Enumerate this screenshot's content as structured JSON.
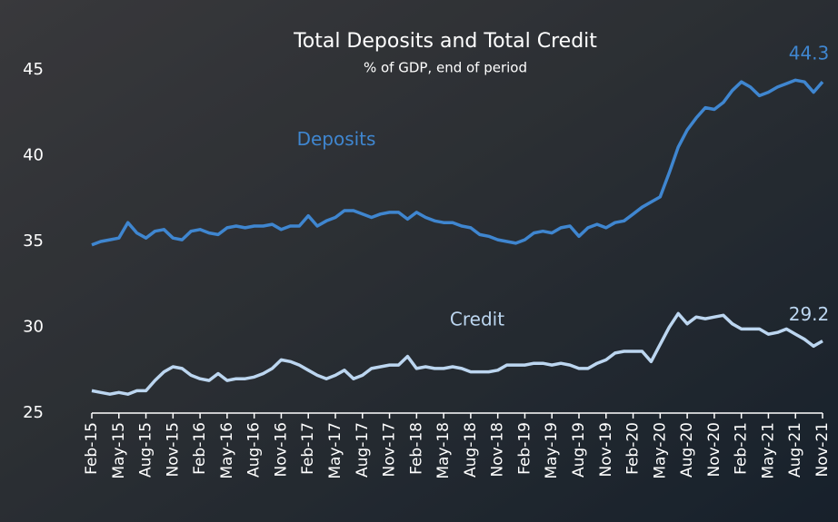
{
  "chart_data": {
    "type": "line",
    "title": "Total Deposits and Total Credit",
    "subtitle": "% of GDP, end of period",
    "categories": [
      "Feb-15",
      null,
      null,
      "May-15",
      null,
      null,
      "Aug-15",
      null,
      null,
      "Nov-15",
      null,
      null,
      "Feb-16",
      null,
      null,
      "May-16",
      null,
      null,
      "Aug-16",
      null,
      null,
      "Nov-16",
      null,
      null,
      "Feb-17",
      null,
      null,
      "May-17",
      null,
      null,
      "Aug-17",
      null,
      null,
      "Nov-17",
      null,
      null,
      "Feb-18",
      null,
      null,
      "May-18",
      null,
      null,
      "Aug-18",
      null,
      null,
      "Nov-18",
      null,
      null,
      "Feb-19",
      null,
      null,
      "May-19",
      null,
      null,
      "Aug-19",
      null,
      null,
      "Nov-19",
      null,
      null,
      "Feb-20",
      null,
      null,
      "May-20",
      null,
      null,
      "Aug-20",
      null,
      null,
      "Nov-20",
      null,
      null,
      "Feb-21",
      null,
      null,
      "May-21",
      null,
      null,
      "Aug-21",
      null,
      null,
      "Nov-21"
    ],
    "series": [
      {
        "name": "Deposits",
        "color": "#3f86d0",
        "values": [
          34.8,
          35.0,
          35.1,
          35.2,
          36.1,
          35.5,
          35.2,
          35.6,
          35.7,
          35.2,
          35.1,
          35.6,
          35.7,
          35.5,
          35.4,
          35.8,
          35.9,
          35.8,
          35.9,
          35.9,
          36.0,
          35.7,
          35.9,
          35.9,
          36.5,
          35.9,
          36.2,
          36.4,
          36.8,
          36.8,
          36.6,
          36.4,
          36.6,
          36.7,
          36.7,
          36.3,
          36.7,
          36.4,
          36.2,
          36.1,
          36.1,
          35.9,
          35.8,
          35.4,
          35.3,
          35.1,
          35.0,
          34.9,
          35.1,
          35.5,
          35.6,
          35.5,
          35.8,
          35.9,
          35.3,
          35.8,
          36.0,
          35.8,
          36.1,
          36.2,
          36.6,
          37.0,
          37.3,
          37.6,
          39.0,
          40.5,
          41.5,
          42.2,
          42.8,
          42.7,
          43.1,
          43.8,
          44.3,
          44.0,
          43.5,
          43.7,
          44.0,
          44.2,
          44.4,
          44.3,
          43.7,
          44.3
        ]
      },
      {
        "name": "Credit",
        "color": "#bcd6f0",
        "values": [
          26.3,
          26.2,
          26.1,
          26.2,
          26.1,
          26.3,
          26.3,
          26.9,
          27.4,
          27.7,
          27.6,
          27.2,
          27.0,
          26.9,
          27.3,
          26.9,
          27.0,
          27.0,
          27.1,
          27.3,
          27.6,
          28.1,
          28.0,
          27.8,
          27.5,
          27.2,
          27.0,
          27.2,
          27.5,
          27.0,
          27.2,
          27.6,
          27.7,
          27.8,
          27.8,
          28.3,
          27.6,
          27.7,
          27.6,
          27.6,
          27.7,
          27.6,
          27.4,
          27.4,
          27.4,
          27.5,
          27.8,
          27.8,
          27.8,
          27.9,
          27.9,
          27.8,
          27.9,
          27.8,
          27.6,
          27.6,
          27.9,
          28.1,
          28.5,
          28.6,
          28.6,
          28.6,
          28.0,
          29.0,
          30.0,
          30.8,
          30.2,
          30.6,
          30.5,
          30.6,
          30.7,
          30.2,
          29.9,
          29.9,
          29.9,
          29.6,
          29.7,
          29.9,
          29.6,
          29.3,
          28.9,
          29.2
        ]
      }
    ],
    "ylim": [
      25,
      46.5
    ],
    "yticks": [
      25,
      30,
      35,
      40,
      45
    ]
  }
}
